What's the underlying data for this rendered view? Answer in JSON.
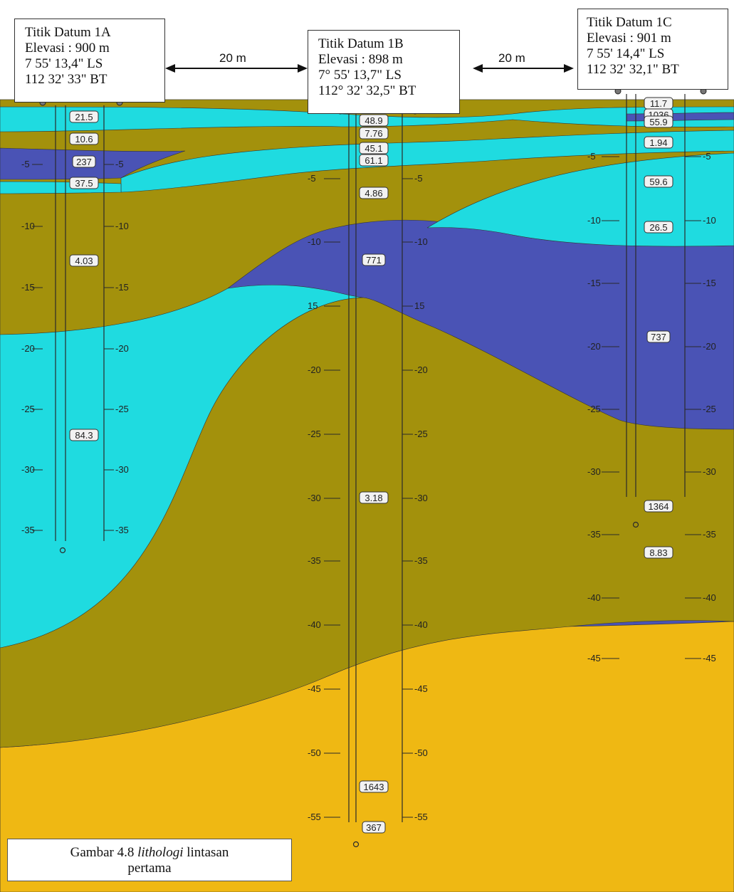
{
  "colors": {
    "cyan": "#1fdbe0",
    "olive": "#a3910c",
    "blue": "#4a53b5",
    "yellow": "#efb813",
    "line": "#2a2a2a"
  },
  "datums": [
    {
      "id": "1A",
      "lines": [
        "Titik Datum 1A",
        "Elevasi : 900 m",
        "7 55' 13,4\" LS",
        "112 32' 33\" BT"
      ]
    },
    {
      "id": "1B",
      "lines": [
        "Titik Datum 1B",
        "Elevasi : 898 m",
        "7° 55' 13,7\" LS",
        "112° 32' 32,5\" BT"
      ]
    },
    {
      "id": "1C",
      "lines": [
        "Titik Datum 1C",
        "Elevasi : 901 m",
        "7 55' 14,4\" LS",
        "112 32' 32,1\" BT"
      ]
    }
  ],
  "distances": [
    "20 m",
    "20 m"
  ],
  "depth_ticks": {
    "1A": [
      "-5",
      "-10",
      "-15",
      "-20",
      "-25",
      "-30",
      "-35"
    ],
    "1B": [
      "-5",
      "-10",
      "15",
      "-20",
      "-25",
      "-30",
      "-35",
      "-40",
      "-45",
      "-50",
      "-55"
    ],
    "1C": [
      "-5",
      "-10",
      "-15",
      "-20",
      "-25",
      "-30",
      "-35",
      "-40",
      "-45"
    ]
  },
  "resistivity": {
    "1A": [
      "21.5",
      "10.6",
      "237",
      "37.5",
      "4.03",
      "84.3"
    ],
    "1B": [
      "48.9",
      "7.76",
      "45.1",
      "61.1",
      "4.86",
      "771",
      "3.18",
      "1643",
      "367"
    ],
    "1C": [
      "11.7",
      "1036",
      "55.9",
      "1.94",
      "59.6",
      "26.5",
      "737",
      "8.83",
      "1364"
    ]
  },
  "caption": {
    "prefix": "Gambar 4.8",
    "italic": "lithologi",
    "suffix": "lintasan",
    "line2": "pertama"
  }
}
